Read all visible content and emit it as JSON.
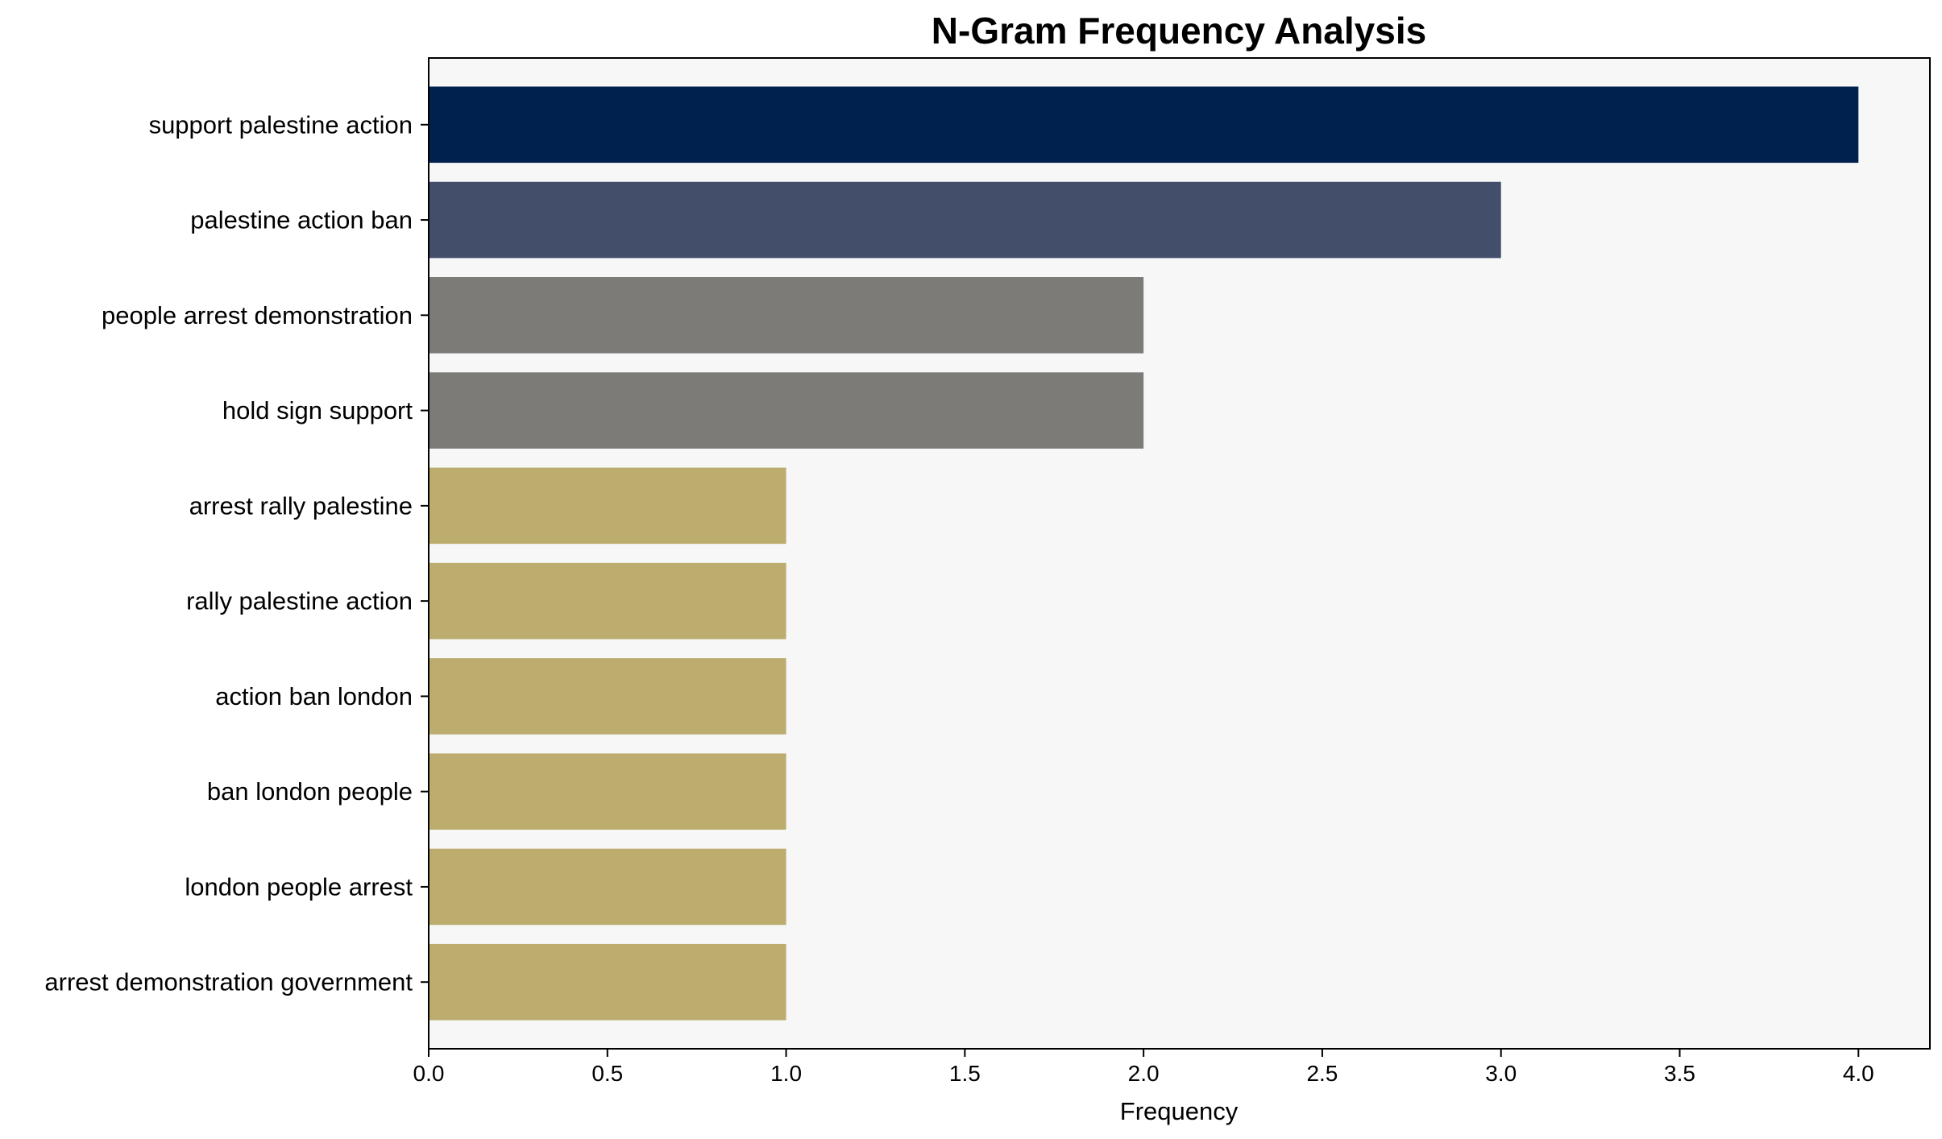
{
  "chart_data": {
    "type": "bar",
    "orientation": "horizontal",
    "title": "N-Gram Frequency Analysis",
    "xlabel": "Frequency",
    "ylabel": "",
    "categories": [
      "support palestine action",
      "palestine action ban",
      "people arrest demonstration",
      "hold sign support",
      "arrest rally palestine",
      "rally palestine action",
      "action ban london",
      "ban london people",
      "london people arrest",
      "arrest demonstration government"
    ],
    "values": [
      4,
      3,
      2,
      2,
      1,
      1,
      1,
      1,
      1,
      1
    ],
    "colors": [
      "#00214d",
      "#434e6b",
      "#7c7b77",
      "#7c7b77",
      "#bcad6f",
      "#bcad6f",
      "#bcad6f",
      "#bcad6f",
      "#bcad6f",
      "#bcad6f"
    ],
    "xlim": [
      0,
      4.2
    ],
    "xticks": [
      "0.0",
      "0.5",
      "1.0",
      "1.5",
      "2.0",
      "2.5",
      "3.0",
      "3.5",
      "4.0"
    ],
    "grid": false,
    "legend": "none",
    "background": "#f7f7f7"
  }
}
